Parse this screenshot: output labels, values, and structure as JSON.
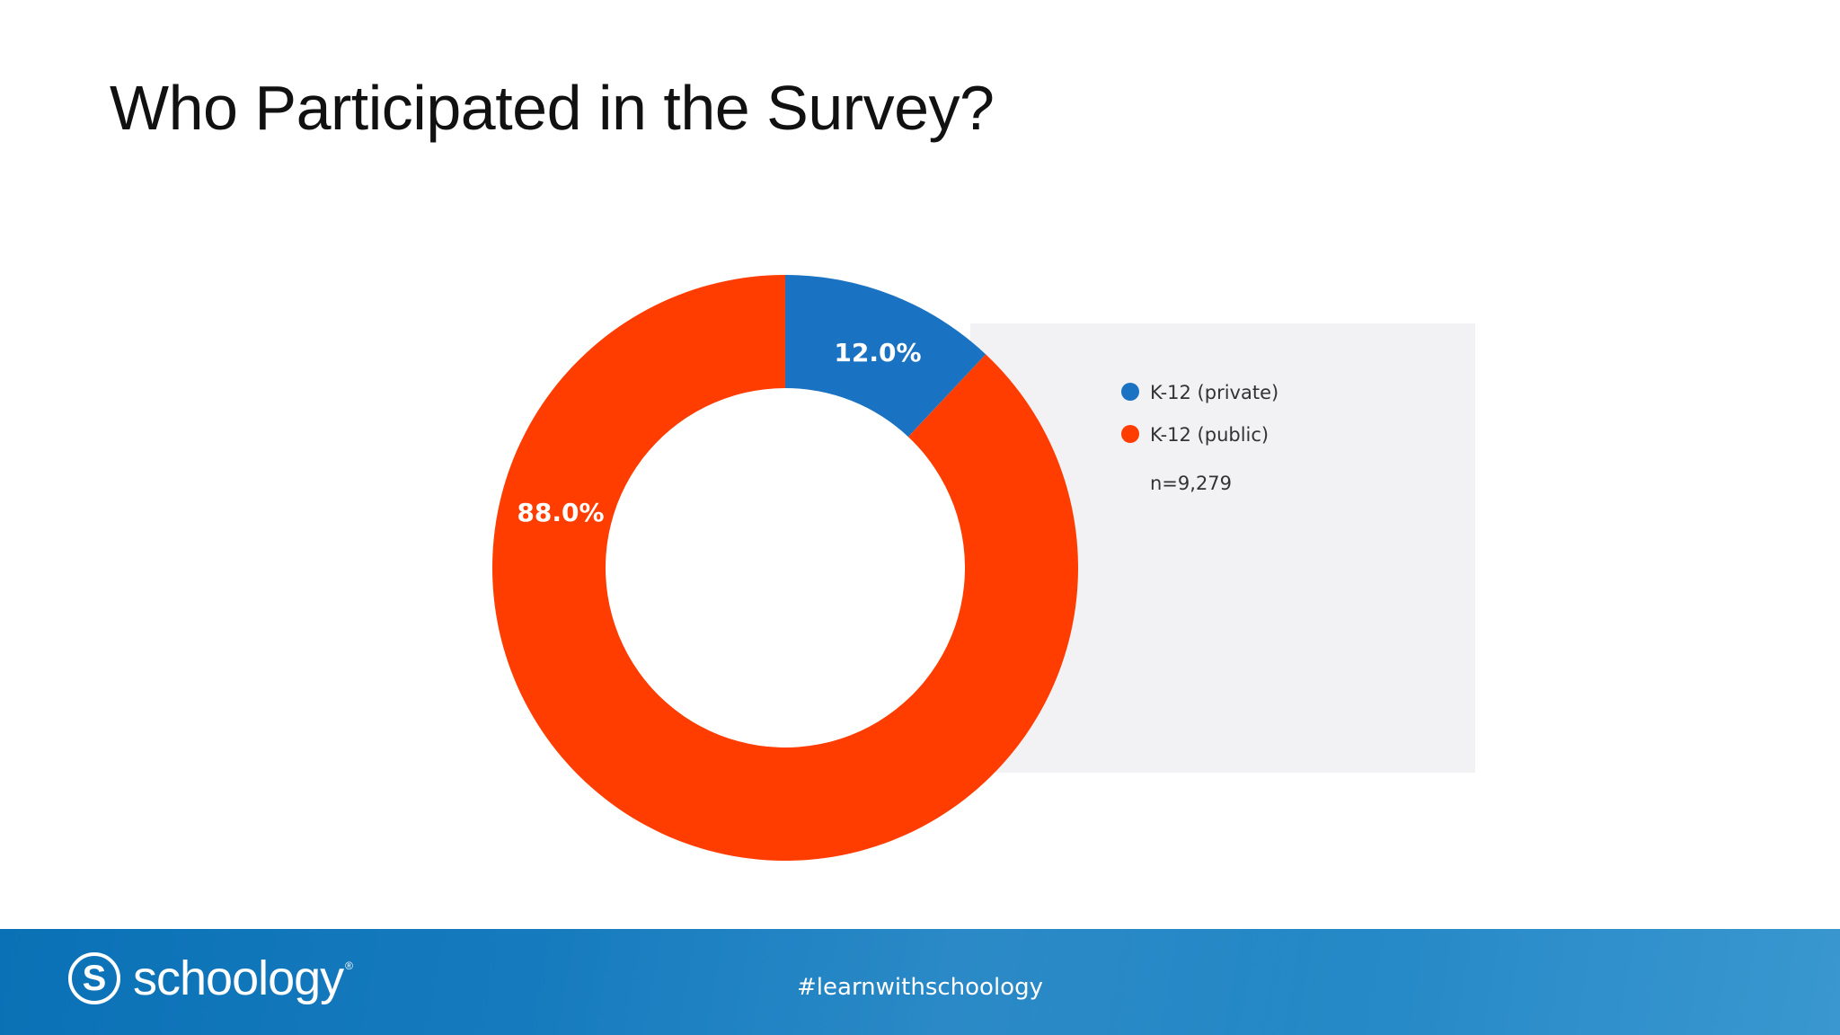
{
  "slide": {
    "title": "Who Participated in the Survey?"
  },
  "chart_data": {
    "type": "pie",
    "style": "donut",
    "title": "",
    "note": "n=9,279",
    "legend_position": "right",
    "slices": [
      {
        "name": "K-12 (private)",
        "value": 12.0,
        "label": "12.0%",
        "color": "#1a73c2"
      },
      {
        "name": "K-12 (public)",
        "value": 88.0,
        "label": "88.0%",
        "color": "#ff3d00"
      }
    ]
  },
  "footer": {
    "logo_text": "schoology",
    "logo_mark": "S",
    "logo_reg": "®",
    "hashtag": "#learnwithschoology",
    "colors": {
      "start": "#0b71b6",
      "end": "#3a97cf"
    }
  }
}
